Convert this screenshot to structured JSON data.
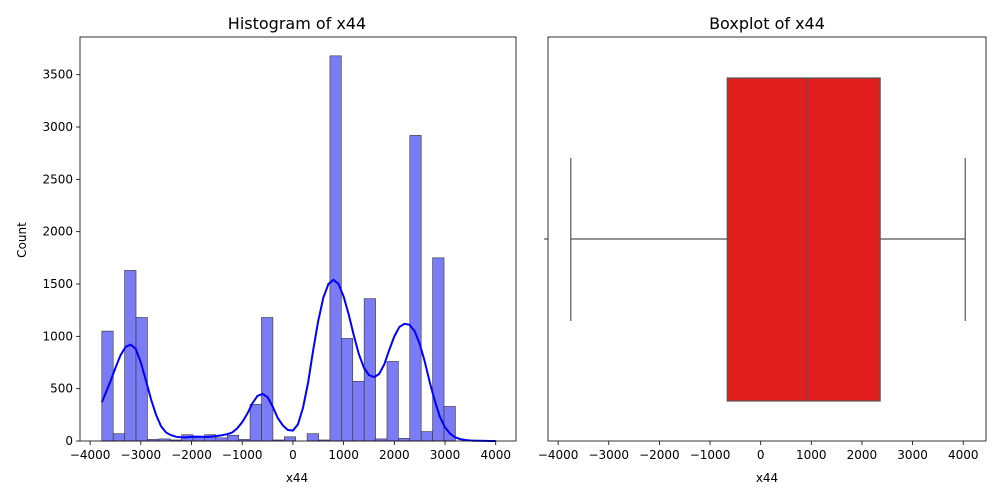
{
  "chart_data": [
    {
      "type": "bar",
      "subtype": "histogram-with-kde",
      "title": "Histogram of x44",
      "xlabel": "x44",
      "ylabel": "Count",
      "xlim": [
        -4200,
        4400
      ],
      "ylim": [
        0,
        3860
      ],
      "xticks": [
        -4000,
        -3000,
        -2000,
        -1000,
        0,
        1000,
        2000,
        3000,
        4000
      ],
      "xtick_labels": [
        "−4000",
        "−3000",
        "−2000",
        "−1000",
        "0",
        "1000",
        "2000",
        "3000",
        "4000"
      ],
      "yticks": [
        0,
        500,
        1000,
        1500,
        2000,
        2500,
        3000,
        3500
      ],
      "ytick_labels": [
        "0",
        "500",
        "1000",
        "1500",
        "2000",
        "2500",
        "3000",
        "3500"
      ],
      "bins": [
        {
          "x0": -3770,
          "x1": -3545,
          "count": 1050
        },
        {
          "x0": -3545,
          "x1": -3320,
          "count": 70
        },
        {
          "x0": -3320,
          "x1": -3095,
          "count": 1630
        },
        {
          "x0": -3095,
          "x1": -2870,
          "count": 1180
        },
        {
          "x0": -2870,
          "x1": -2645,
          "count": 15
        },
        {
          "x0": -2645,
          "x1": -2420,
          "count": 20
        },
        {
          "x0": -2420,
          "x1": -2195,
          "count": 10
        },
        {
          "x0": -2195,
          "x1": -1970,
          "count": 60
        },
        {
          "x0": -1970,
          "x1": -1745,
          "count": 35
        },
        {
          "x0": -1745,
          "x1": -1520,
          "count": 60
        },
        {
          "x0": -1520,
          "x1": -1295,
          "count": 30
        },
        {
          "x0": -1295,
          "x1": -1070,
          "count": 55
        },
        {
          "x0": -1070,
          "x1": -845,
          "count": 15
        },
        {
          "x0": -845,
          "x1": -620,
          "count": 350
        },
        {
          "x0": -620,
          "x1": -395,
          "count": 1180
        },
        {
          "x0": -395,
          "x1": -170,
          "count": 10
        },
        {
          "x0": -170,
          "x1": 55,
          "count": 40
        },
        {
          "x0": 55,
          "x1": 280,
          "count": 0
        },
        {
          "x0": 280,
          "x1": 505,
          "count": 70
        },
        {
          "x0": 505,
          "x1": 730,
          "count": 10
        },
        {
          "x0": 730,
          "x1": 955,
          "count": 3680
        },
        {
          "x0": 955,
          "x1": 1180,
          "count": 980
        },
        {
          "x0": 1180,
          "x1": 1405,
          "count": 570
        },
        {
          "x0": 1405,
          "x1": 1630,
          "count": 1360
        },
        {
          "x0": 1630,
          "x1": 1855,
          "count": 20
        },
        {
          "x0": 1855,
          "x1": 2080,
          "count": 760
        },
        {
          "x0": 2080,
          "x1": 2305,
          "count": 25
        },
        {
          "x0": 2305,
          "x1": 2530,
          "count": 2920
        },
        {
          "x0": 2530,
          "x1": 2755,
          "count": 90
        },
        {
          "x0": 2755,
          "x1": 2980,
          "count": 1750
        },
        {
          "x0": 2980,
          "x1": 3205,
          "count": 330
        }
      ],
      "kde": {
        "x": [
          -3770,
          -3700,
          -3600,
          -3500,
          -3400,
          -3300,
          -3200,
          -3100,
          -3000,
          -2900,
          -2800,
          -2700,
          -2600,
          -2500,
          -2400,
          -2300,
          -2200,
          -2100,
          -2000,
          -1900,
          -1800,
          -1700,
          -1600,
          -1500,
          -1400,
          -1300,
          -1200,
          -1100,
          -1000,
          -900,
          -800,
          -700,
          -600,
          -500,
          -400,
          -300,
          -200,
          -100,
          0,
          100,
          200,
          300,
          400,
          500,
          600,
          700,
          800,
          900,
          1000,
          1100,
          1200,
          1300,
          1400,
          1500,
          1600,
          1700,
          1800,
          1900,
          2000,
          2100,
          2200,
          2300,
          2400,
          2500,
          2600,
          2700,
          2800,
          2900,
          3000,
          3100,
          3200,
          3300,
          3400,
          3500,
          3600,
          3700,
          3800,
          3900,
          4000
        ],
        "y": [
          370,
          450,
          570,
          700,
          820,
          900,
          920,
          880,
          750,
          580,
          400,
          250,
          140,
          80,
          55,
          40,
          35,
          35,
          40,
          42,
          40,
          38,
          42,
          48,
          55,
          65,
          80,
          120,
          180,
          260,
          360,
          430,
          450,
          420,
          330,
          220,
          150,
          105,
          100,
          160,
          320,
          560,
          870,
          1150,
          1370,
          1500,
          1540,
          1500,
          1380,
          1210,
          1010,
          830,
          700,
          630,
          610,
          640,
          730,
          870,
          1000,
          1090,
          1120,
          1110,
          1050,
          930,
          760,
          560,
          380,
          230,
          130,
          70,
          35,
          18,
          10,
          5,
          3,
          2,
          1,
          0,
          0
        ]
      },
      "bar_color": "#7b7bf5",
      "kde_color": "#0000ff"
    },
    {
      "type": "boxplot",
      "title": "Boxplot of x44",
      "xlabel": "x44",
      "xlim": [
        -4200,
        4450
      ],
      "xticks": [
        -4000,
        -3000,
        -2000,
        -1000,
        0,
        1000,
        2000,
        3000,
        4000
      ],
      "xtick_labels": [
        "−4000",
        "−3000",
        "−2000",
        "−1000",
        "0",
        "1000",
        "2000",
        "3000",
        "4000"
      ],
      "min": -3750,
      "q1": -660,
      "median": 920,
      "q3": 2360,
      "max": 4040,
      "box_color": "#e01e1e"
    }
  ]
}
